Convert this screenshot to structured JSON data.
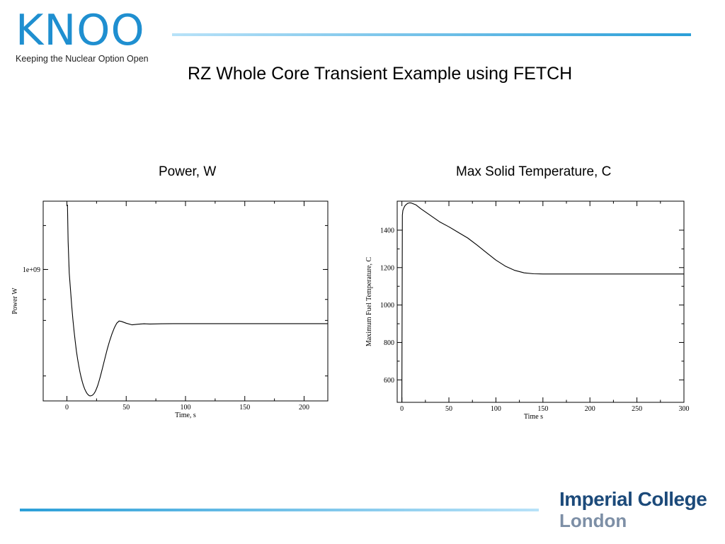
{
  "logo": {
    "word": "KNOO",
    "tagline": "Keeping the Nuclear Option Open"
  },
  "slide": {
    "title": "RZ Whole Core Transient Example using FETCH"
  },
  "branding": {
    "line1": "Imperial College",
    "line2": "London"
  },
  "colors": {
    "accent": "#1f8fd0",
    "imperial_navy": "#1c4a7a",
    "imperial_grey": "#7d8fa6"
  },
  "chart_data": [
    {
      "caption": "Power, W",
      "type": "line",
      "xlabel": "Time, s",
      "ylabel": "Power W",
      "xlim": [
        -20,
        220
      ],
      "ylim": [
        0,
        1.0
      ],
      "x_ticks": [
        0,
        50,
        100,
        150,
        200
      ],
      "y_tick_labels": [
        {
          "label": "1e+09",
          "value": 0.658
        }
      ],
      "y_minor_ticks": [
        0.878,
        0.658,
        0.508,
        0.403,
        0.125
      ],
      "grid": false,
      "series": [
        {
          "x": [
            0,
            0.5,
            1,
            1.5,
            2,
            3,
            4,
            5,
            6,
            7,
            8,
            9,
            10,
            11,
            12,
            13,
            14,
            15,
            16,
            17,
            18,
            19,
            20,
            21,
            22,
            23,
            24,
            25,
            26,
            27,
            28,
            29,
            30,
            32,
            34,
            36,
            38,
            40,
            42,
            44,
            46,
            50,
            55,
            60,
            65,
            70,
            80,
            90,
            100,
            120,
            150,
            200,
            220
          ],
          "y": [
            0.98,
            0.98,
            0.8,
            0.72,
            0.64,
            0.56,
            0.48,
            0.41,
            0.35,
            0.3,
            0.25,
            0.21,
            0.175,
            0.145,
            0.118,
            0.095,
            0.076,
            0.06,
            0.047,
            0.037,
            0.03,
            0.026,
            0.025,
            0.027,
            0.031,
            0.038,
            0.048,
            0.062,
            0.078,
            0.097,
            0.118,
            0.141,
            0.165,
            0.212,
            0.258,
            0.3,
            0.336,
            0.366,
            0.389,
            0.4,
            0.398,
            0.389,
            0.381,
            0.384,
            0.386,
            0.385,
            0.386,
            0.387,
            0.387,
            0.387,
            0.387,
            0.387,
            0.387
          ]
        }
      ]
    },
    {
      "caption": "Max Solid Temperature, C",
      "type": "line",
      "xlabel": "Time s",
      "ylabel": "Maximum Fuel Temperature, C",
      "xlim": [
        -5,
        300
      ],
      "ylim": [
        480,
        1555
      ],
      "x_ticks": [
        0,
        50,
        100,
        150,
        200,
        250,
        300
      ],
      "y_ticks": [
        600,
        800,
        1000,
        1200,
        1400
      ],
      "grid": false,
      "series": [
        {
          "x": [
            -5,
            0,
            0.5,
            1,
            2,
            3,
            4,
            6,
            8,
            10,
            15,
            20,
            30,
            40,
            50,
            60,
            70,
            80,
            90,
            100,
            110,
            120,
            130,
            140,
            150,
            200,
            250,
            300
          ],
          "y": [
            480,
            480,
            1480,
            1505,
            1518,
            1528,
            1535,
            1543,
            1546,
            1545,
            1535,
            1515,
            1480,
            1445,
            1418,
            1388,
            1358,
            1320,
            1280,
            1240,
            1208,
            1185,
            1172,
            1167,
            1166,
            1166,
            1166,
            1166
          ]
        }
      ]
    }
  ]
}
